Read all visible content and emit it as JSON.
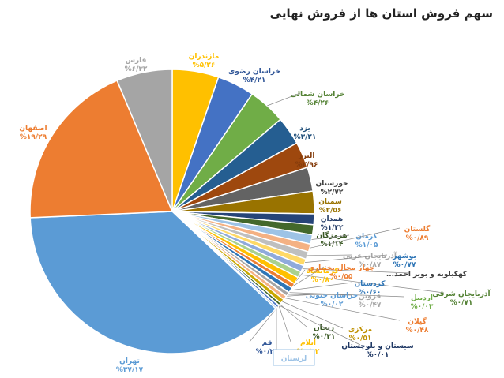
{
  "chart_data": {
    "type": "pie",
    "title": "سهم فروش استان ها از فروش نهایی",
    "slices": [
      {
        "name": "مازندران",
        "value_label": "%۵/۲۶",
        "value": 5.26,
        "color": "#ffc000"
      },
      {
        "name": "خراسان رضوی",
        "value_label": "%۴/۲۱",
        "value": 4.21,
        "color": "#4472c4"
      },
      {
        "name": "خراسان شمالی",
        "value_label": "%۴/۲۶",
        "value": 4.26,
        "color": "#70ad47"
      },
      {
        "name": "یزد",
        "value_label": "%۳/۲۱",
        "value": 3.21,
        "color": "#255e91"
      },
      {
        "name": "البرز",
        "value_label": "%۲/۹۶",
        "value": 2.96,
        "color": "#9e480e"
      },
      {
        "name": "خوزستان",
        "value_label": "%۲/۷۲",
        "value": 2.72,
        "color": "#636363"
      },
      {
        "name": "سمنان",
        "value_label": "%۲/۵۶",
        "value": 2.56,
        "color": "#997300"
      },
      {
        "name": "همدان",
        "value_label": "%۱/۲۲",
        "value": 1.22,
        "color": "#264478"
      },
      {
        "name": "هرمزگان",
        "value_label": "%۱/۱۴",
        "value": 1.14,
        "color": "#43682b"
      },
      {
        "name": "کرمان",
        "value_label": "%۱/۰۵",
        "value": 1.05,
        "color": "#9dc3e6"
      },
      {
        "name": "گلستان",
        "value_label": "%۰/۸۹",
        "value": 0.89,
        "color": "#f4b183"
      },
      {
        "name": "آذربایجان غربی",
        "value_label": "%۰/۸۷",
        "value": 0.87,
        "color": "#bfbfbf"
      },
      {
        "name": "بوشهر",
        "value_label": "%۰/۷۷",
        "value": 0.77,
        "color": "#ffd966"
      },
      {
        "name": "کهکیلویه و بویر احمد...",
        "value_label": "",
        "value": 0.75,
        "color": "#8faadc"
      },
      {
        "name": "آذربایجان شرقی",
        "value_label": "%۰/۷۱",
        "value": 0.71,
        "color": "#a9d18e"
      },
      {
        "name": "کرمانشاه",
        "value_label": "%۰/۸۰",
        "value": 0.8,
        "color": "#ffc000"
      },
      {
        "name": "چهار محال بختیاری",
        "value_label": "%۰/۵۵",
        "value": 0.55,
        "color": "#ed7d31"
      },
      {
        "name": "کردستان",
        "value_label": "%۰/۶۰",
        "value": 0.6,
        "color": "#2e75b6"
      },
      {
        "name": "اردبیل",
        "value_label": "%۰/۰۳",
        "value": 0.03,
        "color": "#70ad47"
      },
      {
        "name": "قزوین",
        "value_label": "%۰/۴۷",
        "value": 0.47,
        "color": "#a5a5a5"
      },
      {
        "name": "خراسان جنوبی",
        "value_label": "%۰/۰۲",
        "value": 0.02,
        "color": "#5b9bd5"
      },
      {
        "name": "گیلان",
        "value_label": "%۰/۴۸",
        "value": 0.48,
        "color": "#f4b183"
      },
      {
        "name": "مرکزی",
        "value_label": "%۰/۵۱",
        "value": 0.51,
        "color": "#c9a800"
      },
      {
        "name": "زنجان",
        "value_label": "%۰/۳۱",
        "value": 0.31,
        "color": "#43682b"
      },
      {
        "name": "سیستان و بلوچستان",
        "value_label": "%۰/۰۱",
        "value": 0.01,
        "color": "#1f3864"
      },
      {
        "name": "ایلام",
        "value_label": "%۰/۰۲",
        "value": 0.02,
        "color": "#ffd966"
      },
      {
        "name": "قم",
        "value_label": "%۰/۲۹",
        "value": 0.29,
        "color": "#4472c4"
      },
      {
        "name": "لرستان",
        "value_label": "",
        "value": 0.2,
        "color": "#9dc3e6"
      },
      {
        "name": "تهران",
        "value_label": "%۳۷/۱۷",
        "value": 37.17,
        "color": "#5b9bd5"
      },
      {
        "name": "اصفهان",
        "value_label": "%۱۹/۲۹",
        "value": 19.29,
        "color": "#ed7d31"
      },
      {
        "name": "فارس",
        "value_label": "%۶/۳۲",
        "value": 6.32,
        "color": "#a5a5a5"
      }
    ]
  }
}
